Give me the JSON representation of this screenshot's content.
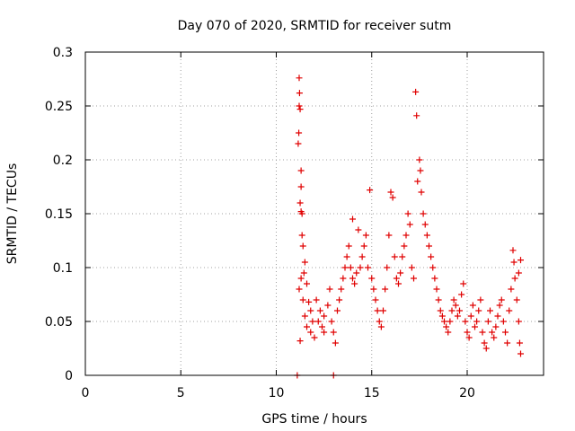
{
  "chart_data": {
    "type": "scatter",
    "title": "Day 070 of 2020, SRMTID for receiver sutm",
    "xlabel": "GPS time / hours",
    "ylabel": "SRMTID / TECUs",
    "xlim": [
      0,
      24
    ],
    "ylim": [
      0,
      0.3
    ],
    "x_ticks": [
      0,
      5,
      10,
      15,
      20
    ],
    "x_tick_labels": [
      "0",
      "5",
      "10",
      "15",
      "20"
    ],
    "y_ticks": [
      0,
      0.05,
      0.1,
      0.15,
      0.2,
      0.25,
      0.3
    ],
    "y_tick_labels": [
      "0",
      "0.05",
      "0.1",
      "0.15",
      "0.2",
      "0.25",
      "0.3"
    ],
    "grid": true,
    "marker": "plus",
    "series": [
      {
        "name": "SRMTID",
        "color": "#e00000",
        "points": [
          [
            11.1,
            0.0
          ],
          [
            13.0,
            0.0
          ],
          [
            11.2,
            0.276
          ],
          [
            11.22,
            0.262
          ],
          [
            11.2,
            0.25
          ],
          [
            11.25,
            0.247
          ],
          [
            11.18,
            0.225
          ],
          [
            11.15,
            0.215
          ],
          [
            11.3,
            0.19
          ],
          [
            11.3,
            0.175
          ],
          [
            11.25,
            0.16
          ],
          [
            11.3,
            0.152
          ],
          [
            11.35,
            0.15
          ],
          [
            11.35,
            0.13
          ],
          [
            11.4,
            0.12
          ],
          [
            11.5,
            0.105
          ],
          [
            11.45,
            0.095
          ],
          [
            11.3,
            0.09
          ],
          [
            11.6,
            0.085
          ],
          [
            11.2,
            0.08
          ],
          [
            11.4,
            0.07
          ],
          [
            11.7,
            0.068
          ],
          [
            11.8,
            0.06
          ],
          [
            11.5,
            0.055
          ],
          [
            11.9,
            0.05
          ],
          [
            11.6,
            0.045
          ],
          [
            11.8,
            0.04
          ],
          [
            12.0,
            0.035
          ],
          [
            11.25,
            0.032
          ],
          [
            12.2,
            0.05
          ],
          [
            12.3,
            0.06
          ],
          [
            12.1,
            0.07
          ],
          [
            12.4,
            0.045
          ],
          [
            12.5,
            0.04
          ],
          [
            12.5,
            0.055
          ],
          [
            12.7,
            0.065
          ],
          [
            12.8,
            0.08
          ],
          [
            12.9,
            0.05
          ],
          [
            13.0,
            0.04
          ],
          [
            13.1,
            0.03
          ],
          [
            13.2,
            0.06
          ],
          [
            13.3,
            0.07
          ],
          [
            13.4,
            0.08
          ],
          [
            13.5,
            0.09
          ],
          [
            13.6,
            0.1
          ],
          [
            13.7,
            0.11
          ],
          [
            13.8,
            0.12
          ],
          [
            13.9,
            0.1
          ],
          [
            14.0,
            0.09
          ],
          [
            14.1,
            0.085
          ],
          [
            14.2,
            0.095
          ],
          [
            14.0,
            0.145
          ],
          [
            14.3,
            0.135
          ],
          [
            14.4,
            0.1
          ],
          [
            14.5,
            0.11
          ],
          [
            14.6,
            0.12
          ],
          [
            14.7,
            0.13
          ],
          [
            14.8,
            0.1
          ],
          [
            14.9,
            0.172
          ],
          [
            15.0,
            0.09
          ],
          [
            15.1,
            0.08
          ],
          [
            15.2,
            0.07
          ],
          [
            15.3,
            0.06
          ],
          [
            15.4,
            0.05
          ],
          [
            15.5,
            0.045
          ],
          [
            15.6,
            0.06
          ],
          [
            15.7,
            0.08
          ],
          [
            15.8,
            0.1
          ],
          [
            15.9,
            0.13
          ],
          [
            16.0,
            0.17
          ],
          [
            16.1,
            0.165
          ],
          [
            16.2,
            0.11
          ],
          [
            16.3,
            0.09
          ],
          [
            16.4,
            0.085
          ],
          [
            16.5,
            0.095
          ],
          [
            16.6,
            0.11
          ],
          [
            16.7,
            0.12
          ],
          [
            16.8,
            0.13
          ],
          [
            16.9,
            0.15
          ],
          [
            17.0,
            0.14
          ],
          [
            17.1,
            0.1
          ],
          [
            17.2,
            0.09
          ],
          [
            17.3,
            0.263
          ],
          [
            17.35,
            0.241
          ],
          [
            17.4,
            0.18
          ],
          [
            17.5,
            0.2
          ],
          [
            17.55,
            0.19
          ],
          [
            17.6,
            0.17
          ],
          [
            17.7,
            0.15
          ],
          [
            17.8,
            0.14
          ],
          [
            17.9,
            0.13
          ],
          [
            18.0,
            0.12
          ],
          [
            18.1,
            0.11
          ],
          [
            18.2,
            0.1
          ],
          [
            18.3,
            0.09
          ],
          [
            18.4,
            0.08
          ],
          [
            18.5,
            0.07
          ],
          [
            18.6,
            0.06
          ],
          [
            18.7,
            0.055
          ],
          [
            18.8,
            0.05
          ],
          [
            18.9,
            0.045
          ],
          [
            19.0,
            0.04
          ],
          [
            19.1,
            0.05
          ],
          [
            19.2,
            0.06
          ],
          [
            19.3,
            0.07
          ],
          [
            19.4,
            0.065
          ],
          [
            19.5,
            0.055
          ],
          [
            19.6,
            0.06
          ],
          [
            19.7,
            0.075
          ],
          [
            19.8,
            0.085
          ],
          [
            19.9,
            0.05
          ],
          [
            20.0,
            0.04
          ],
          [
            20.1,
            0.035
          ],
          [
            20.2,
            0.055
          ],
          [
            20.3,
            0.065
          ],
          [
            20.4,
            0.045
          ],
          [
            20.5,
            0.05
          ],
          [
            20.6,
            0.06
          ],
          [
            20.7,
            0.07
          ],
          [
            20.8,
            0.04
          ],
          [
            20.9,
            0.03
          ],
          [
            21.0,
            0.025
          ],
          [
            21.1,
            0.05
          ],
          [
            21.2,
            0.06
          ],
          [
            21.3,
            0.04
          ],
          [
            21.4,
            0.035
          ],
          [
            21.5,
            0.045
          ],
          [
            21.6,
            0.055
          ],
          [
            21.7,
            0.065
          ],
          [
            21.8,
            0.07
          ],
          [
            21.9,
            0.05
          ],
          [
            22.0,
            0.04
          ],
          [
            22.1,
            0.03
          ],
          [
            22.2,
            0.06
          ],
          [
            22.3,
            0.08
          ],
          [
            22.4,
            0.116
          ],
          [
            22.45,
            0.105
          ],
          [
            22.5,
            0.09
          ],
          [
            22.6,
            0.07
          ],
          [
            22.7,
            0.05
          ],
          [
            22.75,
            0.03
          ],
          [
            22.8,
            0.02
          ],
          [
            22.8,
            0.107
          ],
          [
            22.7,
            0.095
          ]
        ]
      }
    ]
  }
}
